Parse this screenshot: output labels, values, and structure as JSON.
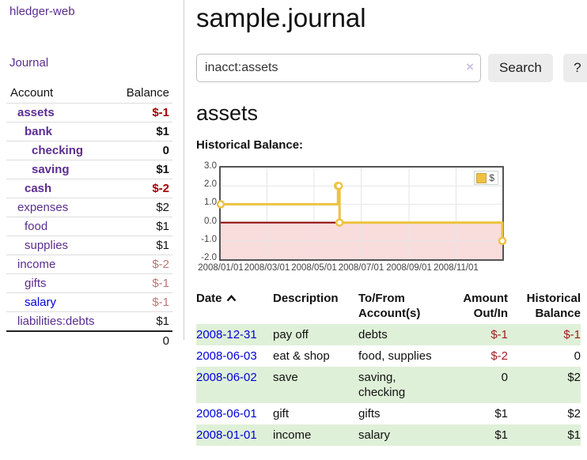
{
  "sidebar": {
    "app_title": "hledger-web",
    "journal_link": "Journal",
    "table": {
      "headers": {
        "account": "Account",
        "balance": "Balance"
      },
      "accounts": [
        {
          "name": "assets",
          "balance": "$-1"
        },
        {
          "name": "bank",
          "balance": "$1"
        },
        {
          "name": "checking",
          "balance": "0"
        },
        {
          "name": "saving",
          "balance": "$1"
        },
        {
          "name": "cash",
          "balance": "$-2"
        },
        {
          "name": "expenses",
          "balance": "$2"
        },
        {
          "name": "food",
          "balance": "$1"
        },
        {
          "name": "supplies",
          "balance": "$1"
        },
        {
          "name": "income",
          "balance": "$-2"
        },
        {
          "name": "gifts",
          "balance": "$-1"
        },
        {
          "name": "salary",
          "balance": "$-1"
        },
        {
          "name": "liabilities:debts",
          "balance": "$1"
        }
      ],
      "total": "0"
    }
  },
  "header": {
    "title": "sample.journal"
  },
  "search": {
    "value": "inacct:assets",
    "clear_icon": "×",
    "search_button": "Search",
    "help_button": "?"
  },
  "main": {
    "account_title": "assets",
    "chart_title": "Historical Balance:"
  },
  "chart_data": {
    "type": "line",
    "style": "steps",
    "title": "Historical Balance",
    "legend": [
      {
        "label": "$",
        "color": "#edc240"
      }
    ],
    "x": [
      "2008-01-01",
      "2008-06-01",
      "2008-06-02",
      "2008-06-03",
      "2008-12-31"
    ],
    "values": [
      1,
      2,
      2,
      0,
      -1
    ],
    "xrange": [
      "2008-01-01",
      "2008-12-31"
    ],
    "ylim": [
      -2,
      3
    ],
    "yticks": [
      {
        "v": 3,
        "label": "3.0"
      },
      {
        "v": 2,
        "label": "2.0"
      },
      {
        "v": 1,
        "label": "1.0"
      },
      {
        "v": 0,
        "label": "0.0"
      },
      {
        "v": -1,
        "label": "-1.0"
      },
      {
        "v": -2,
        "label": "-2.0"
      }
    ],
    "xticks": [
      {
        "date": "2008-01-01",
        "label": "2008/01/01"
      },
      {
        "date": "2008-03-01",
        "label": "2008/03/01"
      },
      {
        "date": "2008-05-01",
        "label": "2008/05/01"
      },
      {
        "date": "2008-07-01",
        "label": "2008/07/01"
      },
      {
        "date": "2008-09-01",
        "label": "2008/09/01"
      },
      {
        "date": "2008-11-01",
        "label": "2008/11/01"
      }
    ],
    "grid": true,
    "negative_region_color": "#f9dcdc",
    "zero_line_color": "#8b0000"
  },
  "register": {
    "headers": {
      "date": "Date",
      "description": "Description",
      "accounts": "To/From Account(s)",
      "amount": "Amount Out/In",
      "balance": "Historical Balance"
    },
    "rows": [
      {
        "date": "2008-12-31",
        "description": "pay off",
        "accounts": "debts",
        "amount": "$-1",
        "balance": "$-1"
      },
      {
        "date": "2008-06-03",
        "description": "eat & shop",
        "accounts": "food, supplies",
        "amount": "$-2",
        "balance": "0"
      },
      {
        "date": "2008-06-02",
        "description": "save",
        "accounts": "saving, checking",
        "amount": "0",
        "balance": "$2"
      },
      {
        "date": "2008-06-01",
        "description": "gift",
        "accounts": "gifts",
        "amount": "$1",
        "balance": "$2"
      },
      {
        "date": "2008-01-01",
        "description": "income",
        "accounts": "salary",
        "amount": "$1",
        "balance": "$1"
      }
    ]
  },
  "colors": {
    "link_purple": "#5b2d90",
    "link_blue": "#0000dd",
    "negative_strong": "#a40000",
    "negative_soft": "#bf7474",
    "table_negative": "#9e1c1c",
    "row_stripe_green": "#dff0d8",
    "chart_line_yellow": "#edc240",
    "chart_negative_bg": "#f9dcdc",
    "chart_zero_line": "#8b0000"
  }
}
